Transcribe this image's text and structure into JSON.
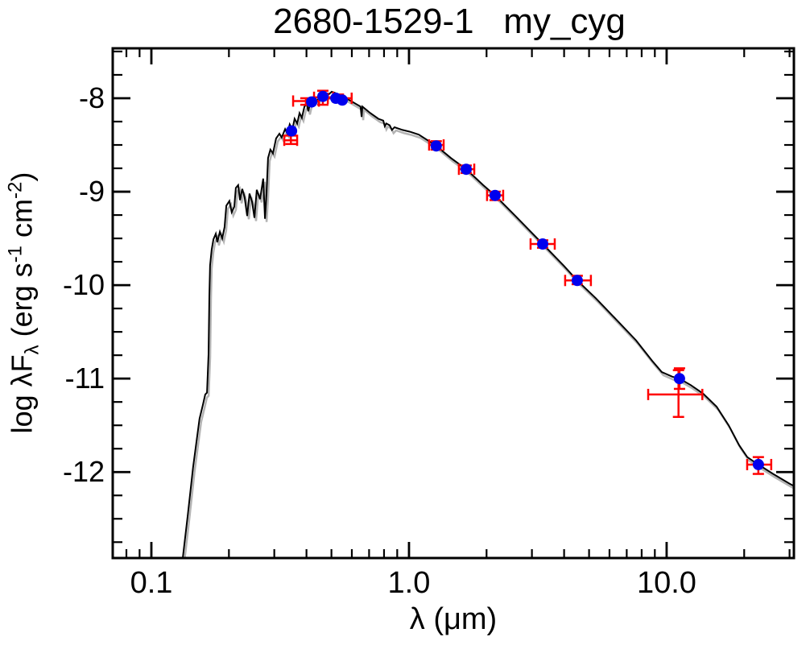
{
  "title": "2680-1529-1   my_cyg",
  "chart_data": {
    "type": "line+scatter+errorbar",
    "title": "2680-1529-1   my_cyg",
    "xlabel": "λ (μm)",
    "ylabel": "log λFλ (erg s⁻¹ cm⁻²)",
    "ylabel_parts": {
      "pre": "log λF",
      "sub": "λ",
      "mid": " (erg s",
      "sup1": "-1",
      "mid2": " cm",
      "sup2": "-2",
      "post": ")"
    },
    "x_scale": "log",
    "xlim_log": [
      -1.15,
      1.494
    ],
    "ylim": [
      -12.92,
      -7.466
    ],
    "grid": false,
    "legend": "none",
    "x_major_ticks": [
      {
        "value": 0.1,
        "label": "0.1"
      },
      {
        "value": 1.0,
        "label": "1.0"
      },
      {
        "value": 10.0,
        "label": "10.0"
      }
    ],
    "x_minor_ticks": [
      0.08,
      0.09,
      0.2,
      0.3,
      0.4,
      0.5,
      0.6,
      0.7,
      0.8,
      0.9,
      2,
      3,
      4,
      5,
      6,
      7,
      8,
      9,
      20,
      30
    ],
    "y_major_ticks": [
      {
        "value": -8,
        "label": "-8"
      },
      {
        "value": -9,
        "label": "-9"
      },
      {
        "value": -10,
        "label": "-10"
      },
      {
        "value": -11,
        "label": "-11"
      },
      {
        "value": -12,
        "label": "-12"
      }
    ],
    "y_minor_step": 0.25,
    "colors": {
      "model_curve": "#000000",
      "model_shadow": "#b4b4b4",
      "photometry_point": "#0000ee",
      "error_bar": "#ff0000",
      "frame": "#000000",
      "background": "#ffffff"
    },
    "model_curve_log10": [
      [
        -0.878,
        -12.92
      ],
      [
        -0.859,
        -12.47
      ],
      [
        -0.838,
        -11.95
      ],
      [
        -0.813,
        -11.43
      ],
      [
        -0.8,
        -11.28
      ],
      [
        -0.791,
        -11.17
      ],
      [
        -0.784,
        -11.15
      ],
      [
        -0.778,
        -10.74
      ],
      [
        -0.775,
        -10.12
      ],
      [
        -0.772,
        -9.79
      ],
      [
        -0.766,
        -9.62
      ],
      [
        -0.759,
        -9.51
      ],
      [
        -0.75,
        -9.45
      ],
      [
        -0.744,
        -9.54
      ],
      [
        -0.734,
        -9.43
      ],
      [
        -0.725,
        -9.5
      ],
      [
        -0.716,
        -9.38
      ],
      [
        -0.709,
        -9.15
      ],
      [
        -0.697,
        -9.1
      ],
      [
        -0.688,
        -9.22
      ],
      [
        -0.678,
        -9.16
      ],
      [
        -0.672,
        -8.96
      ],
      [
        -0.663,
        -8.93
      ],
      [
        -0.656,
        -9.09
      ],
      [
        -0.647,
        -8.97
      ],
      [
        -0.638,
        -9.06
      ],
      [
        -0.628,
        -9.26
      ],
      [
        -0.619,
        -9.02
      ],
      [
        -0.609,
        -9.11
      ],
      [
        -0.6,
        -9.28
      ],
      [
        -0.591,
        -8.98
      ],
      [
        -0.578,
        -9.08
      ],
      [
        -0.566,
        -8.86
      ],
      [
        -0.559,
        -9.29
      ],
      [
        -0.553,
        -9.02
      ],
      [
        -0.547,
        -8.64
      ],
      [
        -0.538,
        -8.55
      ],
      [
        -0.528,
        -8.59
      ],
      [
        -0.516,
        -8.43
      ],
      [
        -0.503,
        -8.38
      ],
      [
        -0.494,
        -8.42
      ],
      [
        -0.481,
        -8.33
      ],
      [
        -0.472,
        -8.38
      ],
      [
        -0.463,
        -8.28
      ],
      [
        -0.453,
        -8.34
      ],
      [
        -0.444,
        -8.22
      ],
      [
        -0.434,
        -8.27
      ],
      [
        -0.425,
        -8.16
      ],
      [
        -0.416,
        -8.21
      ],
      [
        -0.406,
        -8.09
      ],
      [
        -0.397,
        -8.06
      ],
      [
        -0.391,
        -8.14
      ],
      [
        -0.381,
        -8.02
      ],
      [
        -0.369,
        -7.98
      ],
      [
        -0.356,
        -8.03
      ],
      [
        -0.344,
        -7.95
      ],
      [
        -0.328,
        -7.93
      ],
      [
        -0.316,
        -7.97
      ],
      [
        -0.3,
        -7.93
      ],
      [
        -0.281,
        -7.95
      ],
      [
        -0.266,
        -7.97
      ],
      [
        -0.244,
        -8.0
      ],
      [
        -0.213,
        -8.05
      ],
      [
        -0.188,
        -8.09
      ],
      [
        -0.184,
        -8.2
      ],
      [
        -0.181,
        -8.09
      ],
      [
        -0.15,
        -8.16
      ],
      [
        -0.119,
        -8.22
      ],
      [
        -0.1,
        -8.24
      ],
      [
        -0.094,
        -8.3
      ],
      [
        -0.088,
        -8.27
      ],
      [
        -0.075,
        -8.29
      ],
      [
        -0.066,
        -8.34
      ],
      [
        -0.056,
        -8.31
      ],
      [
        -0.025,
        -8.34
      ],
      [
        0.006,
        -8.36
      ],
      [
        0.038,
        -8.39
      ],
      [
        0.106,
        -8.51
      ],
      [
        0.163,
        -8.64
      ],
      [
        0.222,
        -8.76
      ],
      [
        0.288,
        -8.93
      ],
      [
        0.334,
        -9.04
      ],
      [
        0.413,
        -9.26
      ],
      [
        0.519,
        -9.56
      ],
      [
        0.6,
        -9.79
      ],
      [
        0.653,
        -9.95
      ],
      [
        0.725,
        -10.14
      ],
      [
        0.819,
        -10.41
      ],
      [
        0.881,
        -10.59
      ],
      [
        0.944,
        -10.81
      ],
      [
        0.981,
        -10.93
      ],
      [
        1.022,
        -10.98
      ],
      [
        1.05,
        -11.0
      ],
      [
        1.094,
        -11.07
      ],
      [
        1.141,
        -11.16
      ],
      [
        1.194,
        -11.3
      ],
      [
        1.241,
        -11.5
      ],
      [
        1.281,
        -11.71
      ],
      [
        1.313,
        -11.84
      ],
      [
        1.356,
        -11.92
      ],
      [
        1.413,
        -12.02
      ],
      [
        1.475,
        -12.12
      ],
      [
        1.494,
        -12.15
      ]
    ],
    "photometry_points": [
      {
        "lambda_um": 0.35,
        "log_flux": -8.35
      },
      {
        "lambda_um": 0.419,
        "log_flux": -8.04
      },
      {
        "lambda_um": 0.463,
        "log_flux": -7.98
      },
      {
        "lambda_um": 0.52,
        "log_flux": -8.0
      },
      {
        "lambda_um": 0.551,
        "log_flux": -8.02
      },
      {
        "lambda_um": 1.276,
        "log_flux": -8.51
      },
      {
        "lambda_um": 1.667,
        "log_flux": -8.76
      },
      {
        "lambda_um": 2.159,
        "log_flux": -9.04
      },
      {
        "lambda_um": 3.302,
        "log_flux": -9.56
      },
      {
        "lambda_um": 4.498,
        "log_flux": -9.95
      },
      {
        "lambda_um": 11.22,
        "log_flux": -11.0
      },
      {
        "lambda_um": 22.7,
        "log_flux": -11.92
      }
    ],
    "error_bars": [
      {
        "lambda_um": 0.348,
        "log_flux": -8.45,
        "lam_lo": 0.328,
        "lam_hi": 0.368,
        "flux_lo": -8.49,
        "flux_hi": -8.4
      },
      {
        "lambda_um": 0.398,
        "log_flux": -8.03,
        "lam_lo": 0.355,
        "lam_hi": 0.447,
        "flux_lo": -8.07,
        "flux_hi": -8.0
      },
      {
        "lambda_um": 0.463,
        "log_flux": -7.99,
        "lam_lo": 0.428,
        "lam_hi": 0.508,
        "flux_lo": -8.07,
        "flux_hi": -7.92
      },
      {
        "lambda_um": 0.532,
        "log_flux": -8.0,
        "lam_lo": 0.484,
        "lam_hi": 0.599,
        "flux_lo": -8.04,
        "flux_hi": -7.96
      },
      {
        "lambda_um": 1.276,
        "log_flux": -8.5,
        "lam_lo": 1.197,
        "lam_hi": 1.363,
        "flux_lo": -8.55,
        "flux_hi": -8.46
      },
      {
        "lambda_um": 1.667,
        "log_flux": -8.76,
        "lam_lo": 1.562,
        "lam_hi": 1.792,
        "flux_lo": -8.8,
        "flux_hi": -8.72
      },
      {
        "lambda_um": 2.159,
        "log_flux": -9.04,
        "lam_lo": 2.009,
        "lam_hi": 2.32,
        "flux_lo": -9.09,
        "flux_hi": -9.0
      },
      {
        "lambda_um": 3.302,
        "log_flux": -9.56,
        "lam_lo": 2.964,
        "lam_hi": 3.679,
        "flux_lo": -9.6,
        "flux_hi": -9.52
      },
      {
        "lambda_um": 4.498,
        "log_flux": -9.95,
        "lam_lo": 4.037,
        "lam_hi": 5.082,
        "flux_lo": -9.99,
        "flux_hi": -9.9
      },
      {
        "lambda_um": 11.22,
        "log_flux": -11.0,
        "lam_lo": 11.22,
        "lam_hi": 11.22,
        "flux_lo": -11.11,
        "flux_hi": -10.89
      },
      {
        "lambda_um": 11.12,
        "log_flux": -11.17,
        "lam_lo": 8.48,
        "lam_hi": 13.76,
        "flux_lo": -11.41,
        "flux_hi": -10.91
      },
      {
        "lambda_um": 22.7,
        "log_flux": -11.92,
        "lam_lo": 20.54,
        "lam_hi": 25.47,
        "flux_lo": -12.02,
        "flux_hi": -11.84
      }
    ]
  }
}
